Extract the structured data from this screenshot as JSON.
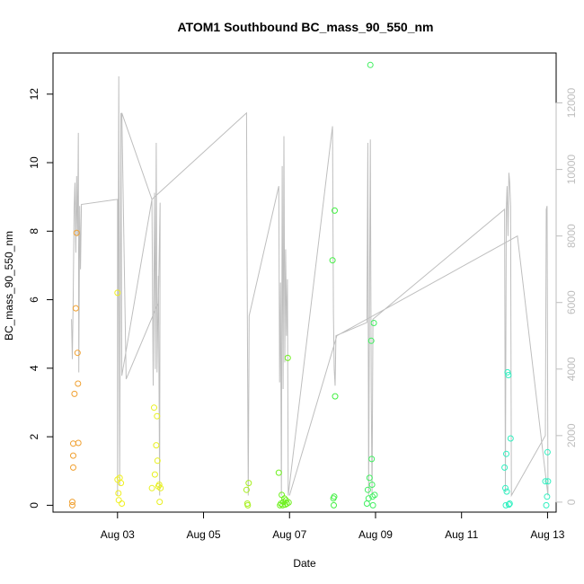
{
  "chart_data": {
    "type": "scatter",
    "title": "ATOM1 Southbound BC_mass_90_550_nm",
    "xlabel": "Date",
    "ylabel": "BC_mass_90_550_nm",
    "x_unit": "days since Aug 01",
    "xlim": [
      1.5,
      13.2
    ],
    "ylim": [
      -0.2,
      13.2
    ],
    "y2lim": [
      -300,
      13500
    ],
    "x_ticks": [
      {
        "value": 3,
        "label": "Aug 03"
      },
      {
        "value": 5,
        "label": "Aug 05"
      },
      {
        "value": 7,
        "label": "Aug 07"
      },
      {
        "value": 9,
        "label": "Aug 09"
      },
      {
        "value": 11,
        "label": "Aug 11"
      },
      {
        "value": 13,
        "label": "Aug 13"
      }
    ],
    "y_ticks": [
      0,
      2,
      4,
      6,
      8,
      10,
      12
    ],
    "y2_ticks": [
      0,
      2000,
      4000,
      6000,
      8000,
      10000,
      12000
    ],
    "grid": false,
    "secondary_series_color": "#bebebe",
    "points": [
      {
        "x": 1.95,
        "y": 0.0,
        "color": "#f0a030"
      },
      {
        "x": 1.95,
        "y": 0.1,
        "color": "#f0a030"
      },
      {
        "x": 1.97,
        "y": 1.1,
        "color": "#f0a030"
      },
      {
        "x": 1.97,
        "y": 1.45,
        "color": "#f0a030"
      },
      {
        "x": 1.97,
        "y": 1.8,
        "color": "#f0a030"
      },
      {
        "x": 2.0,
        "y": 3.25,
        "color": "#f0a030"
      },
      {
        "x": 2.03,
        "y": 5.75,
        "color": "#f0a030"
      },
      {
        "x": 2.05,
        "y": 7.95,
        "color": "#f0a030"
      },
      {
        "x": 2.07,
        "y": 4.45,
        "color": "#f0a030"
      },
      {
        "x": 2.08,
        "y": 3.55,
        "color": "#f0a030"
      },
      {
        "x": 2.09,
        "y": 1.82,
        "color": "#f0a030"
      },
      {
        "x": 3.0,
        "y": 0.75,
        "color": "#f0f020"
      },
      {
        "x": 3.0,
        "y": 6.2,
        "color": "#f0f020"
      },
      {
        "x": 3.02,
        "y": 0.35,
        "color": "#f0f020"
      },
      {
        "x": 3.03,
        "y": 0.15,
        "color": "#f0f020"
      },
      {
        "x": 3.05,
        "y": 0.8,
        "color": "#f0f020"
      },
      {
        "x": 3.08,
        "y": 0.65,
        "color": "#f0f020"
      },
      {
        "x": 3.1,
        "y": 0.05,
        "color": "#f0f020"
      },
      {
        "x": 3.8,
        "y": 0.5,
        "color": "#e8f020"
      },
      {
        "x": 3.85,
        "y": 2.85,
        "color": "#e8f020"
      },
      {
        "x": 3.87,
        "y": 0.9,
        "color": "#e8f020"
      },
      {
        "x": 3.9,
        "y": 1.75,
        "color": "#e8f020"
      },
      {
        "x": 3.92,
        "y": 2.6,
        "color": "#e8f020"
      },
      {
        "x": 3.93,
        "y": 1.3,
        "color": "#e8f020"
      },
      {
        "x": 3.95,
        "y": 0.55,
        "color": "#e8f020"
      },
      {
        "x": 3.97,
        "y": 0.6,
        "color": "#e8f020"
      },
      {
        "x": 3.98,
        "y": 0.1,
        "color": "#e8f020"
      },
      {
        "x": 4.0,
        "y": 0.5,
        "color": "#e8f020"
      },
      {
        "x": 6.0,
        "y": 0.45,
        "color": "#a8f020"
      },
      {
        "x": 6.02,
        "y": 0.05,
        "color": "#a8f020"
      },
      {
        "x": 6.05,
        "y": 0.65,
        "color": "#a8f020"
      },
      {
        "x": 6.03,
        "y": 0.0,
        "color": "#a8f020"
      },
      {
        "x": 6.75,
        "y": 0.95,
        "color": "#70f020"
      },
      {
        "x": 6.78,
        "y": 0.0,
        "color": "#70f020"
      },
      {
        "x": 6.8,
        "y": 0.05,
        "color": "#70f020"
      },
      {
        "x": 6.82,
        "y": 0.3,
        "color": "#70f020"
      },
      {
        "x": 6.84,
        "y": 0.0,
        "color": "#70f020"
      },
      {
        "x": 6.86,
        "y": 0.1,
        "color": "#70f020"
      },
      {
        "x": 6.88,
        "y": 0.2,
        "color": "#70f020"
      },
      {
        "x": 6.9,
        "y": 0.02,
        "color": "#70f020"
      },
      {
        "x": 6.92,
        "y": 0.15,
        "color": "#70f020"
      },
      {
        "x": 6.94,
        "y": 0.05,
        "color": "#70f020"
      },
      {
        "x": 6.96,
        "y": 4.3,
        "color": "#70f020"
      },
      {
        "x": 6.98,
        "y": 0.08,
        "color": "#70f020"
      },
      {
        "x": 8.0,
        "y": 7.15,
        "color": "#40f040"
      },
      {
        "x": 8.02,
        "y": 0.2,
        "color": "#40f040"
      },
      {
        "x": 8.04,
        "y": 0.25,
        "color": "#40f040"
      },
      {
        "x": 8.05,
        "y": 8.6,
        "color": "#40f040"
      },
      {
        "x": 8.06,
        "y": 3.18,
        "color": "#40f040"
      },
      {
        "x": 8.03,
        "y": 0.0,
        "color": "#40f040"
      },
      {
        "x": 8.8,
        "y": 0.05,
        "color": "#40f060"
      },
      {
        "x": 8.82,
        "y": 0.45,
        "color": "#40f060"
      },
      {
        "x": 8.84,
        "y": 0.2,
        "color": "#40f060"
      },
      {
        "x": 8.86,
        "y": 0.8,
        "color": "#40f060"
      },
      {
        "x": 8.88,
        "y": 12.85,
        "color": "#40f060"
      },
      {
        "x": 8.9,
        "y": 4.8,
        "color": "#40f060"
      },
      {
        "x": 8.91,
        "y": 1.35,
        "color": "#40f060"
      },
      {
        "x": 8.92,
        "y": 0.6,
        "color": "#40f060"
      },
      {
        "x": 8.93,
        "y": 0.25,
        "color": "#40f060"
      },
      {
        "x": 8.94,
        "y": 0.0,
        "color": "#40f060"
      },
      {
        "x": 8.96,
        "y": 5.32,
        "color": "#40f060"
      },
      {
        "x": 8.98,
        "y": 0.3,
        "color": "#40f060"
      },
      {
        "x": 12.0,
        "y": 1.1,
        "color": "#30f0c0"
      },
      {
        "x": 12.02,
        "y": 0.5,
        "color": "#30f0c0"
      },
      {
        "x": 12.04,
        "y": 1.5,
        "color": "#30f0c0"
      },
      {
        "x": 12.03,
        "y": 0.0,
        "color": "#30f0c0"
      },
      {
        "x": 12.05,
        "y": 0.4,
        "color": "#30f0c0"
      },
      {
        "x": 12.07,
        "y": 3.88,
        "color": "#30f0c0"
      },
      {
        "x": 12.09,
        "y": 3.8,
        "color": "#30f0c0"
      },
      {
        "x": 12.1,
        "y": 0.02,
        "color": "#30f0c0"
      },
      {
        "x": 12.12,
        "y": 0.05,
        "color": "#30f0c0"
      },
      {
        "x": 12.14,
        "y": 1.95,
        "color": "#30f0c0"
      },
      {
        "x": 12.95,
        "y": 0.7,
        "color": "#30f0c0"
      },
      {
        "x": 12.97,
        "y": 0.0,
        "color": "#30f0c0"
      },
      {
        "x": 12.99,
        "y": 0.25,
        "color": "#30f0c0"
      },
      {
        "x": 13.0,
        "y": 1.55,
        "color": "#30f0c0"
      },
      {
        "x": 13.01,
        "y": 0.7,
        "color": "#30f0c0"
      }
    ],
    "secondary_line": [
      [
        1.93,
        5500
      ],
      [
        1.95,
        4300
      ],
      [
        1.97,
        6200
      ],
      [
        1.99,
        8800
      ],
      [
        2.01,
        9600
      ],
      [
        2.03,
        7500
      ],
      [
        2.05,
        9800
      ],
      [
        2.07,
        8000
      ],
      [
        2.09,
        11100
      ],
      [
        2.1,
        3900
      ],
      [
        2.12,
        8900
      ],
      [
        2.14,
        7000
      ],
      [
        2.16,
        8950
      ],
      [
        3.0,
        9100
      ],
      [
        3.0,
        200
      ],
      [
        3.03,
        12800
      ],
      [
        3.05,
        500
      ],
      [
        3.08,
        11700
      ],
      [
        3.1,
        3800
      ],
      [
        3.8,
        9100
      ],
      [
        3.83,
        3500
      ],
      [
        3.86,
        9300
      ],
      [
        3.88,
        4000
      ],
      [
        3.9,
        10800
      ],
      [
        3.92,
        3900
      ],
      [
        3.95,
        6800
      ],
      [
        3.98,
        200
      ],
      [
        3.99,
        9000
      ],
      [
        3.95,
        6000
      ],
      [
        3.2,
        3700
      ],
      [
        3.1,
        11700
      ],
      [
        3.8,
        9100
      ],
      [
        6.0,
        11700
      ],
      [
        6.02,
        5600
      ],
      [
        6.04,
        200
      ],
      [
        6.06,
        5600
      ],
      [
        6.75,
        9500
      ],
      [
        6.77,
        3600
      ],
      [
        6.79,
        6600
      ],
      [
        6.81,
        200
      ],
      [
        6.83,
        10100
      ],
      [
        6.85,
        3400
      ],
      [
        6.87,
        11000
      ],
      [
        6.89,
        4200
      ],
      [
        6.91,
        7600
      ],
      [
        6.93,
        5000
      ],
      [
        6.95,
        6700
      ],
      [
        6.97,
        200
      ],
      [
        8.0,
        11300
      ],
      [
        8.02,
        5700
      ],
      [
        8.04,
        4000
      ],
      [
        8.06,
        3500
      ],
      [
        8.08,
        5000
      ],
      [
        8.8,
        5400
      ],
      [
        8.82,
        10800
      ],
      [
        8.84,
        200
      ],
      [
        8.86,
        6300
      ],
      [
        8.88,
        10900
      ],
      [
        8.9,
        3300
      ],
      [
        8.92,
        200
      ],
      [
        8.94,
        5500
      ],
      [
        12.0,
        8800
      ],
      [
        12.02,
        300
      ],
      [
        12.04,
        8800
      ],
      [
        12.06,
        9500
      ],
      [
        12.08,
        8000
      ],
      [
        12.1,
        9900
      ],
      [
        12.12,
        9600
      ],
      [
        12.14,
        8900
      ],
      [
        12.16,
        200
      ],
      [
        12.95,
        2000
      ],
      [
        12.97,
        8800
      ],
      [
        12.99,
        8900
      ],
      [
        13.01,
        200
      ],
      [
        12.3,
        8000
      ],
      [
        8.1,
        5000
      ],
      [
        7.0,
        200
      ]
    ]
  }
}
